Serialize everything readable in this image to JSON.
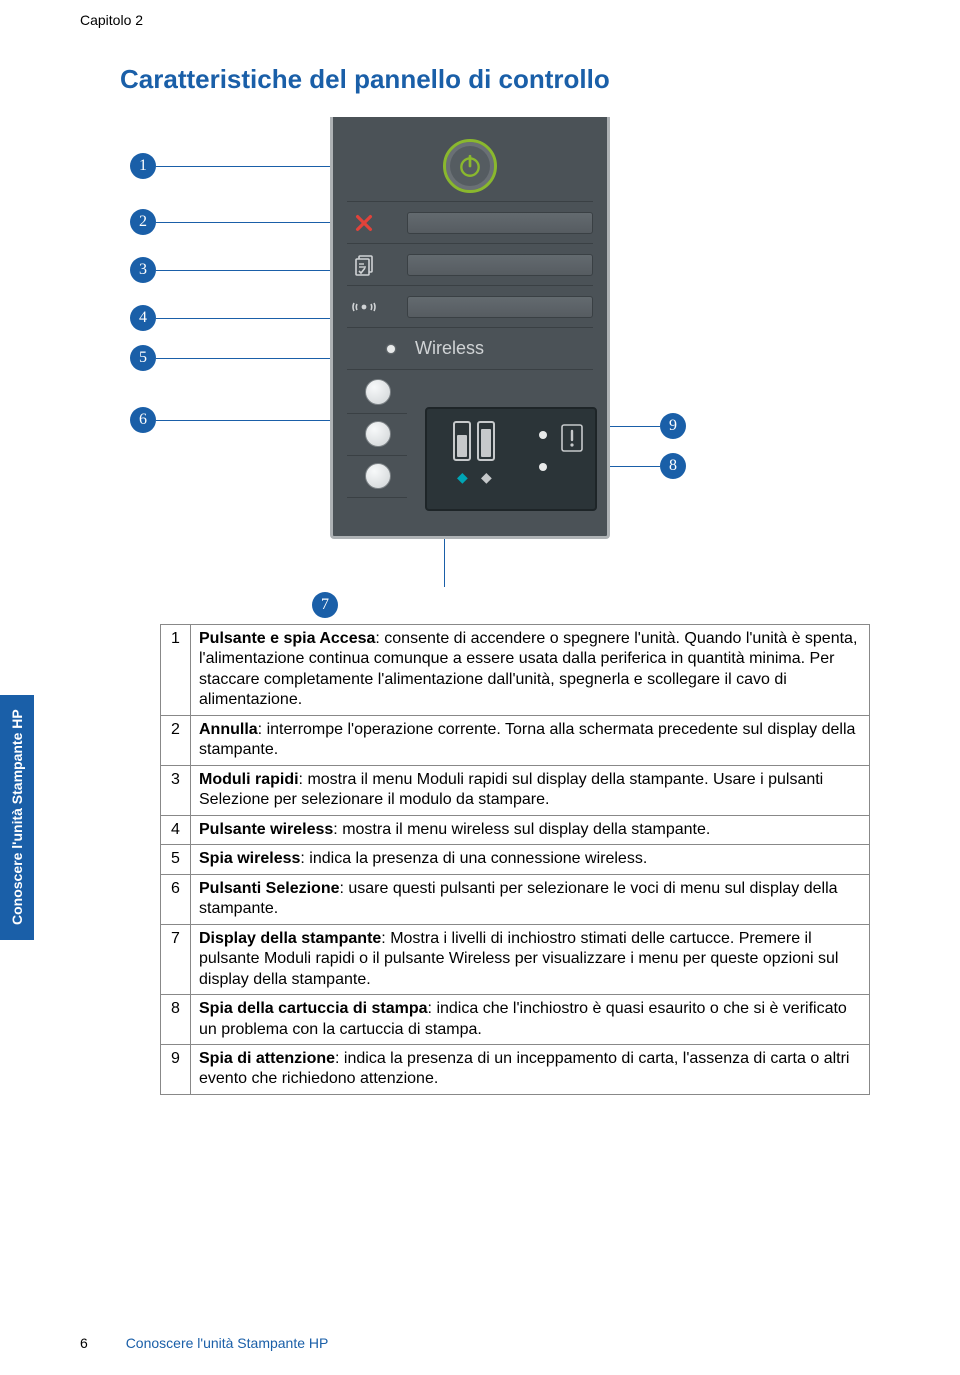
{
  "chapter_label": "Capitolo 2",
  "section_title": "Caratteristiche del pannello di controllo",
  "sidebar_text": "Conoscere l'unità Stampante HP",
  "wireless_label": "Wireless",
  "callouts": {
    "c1": "1",
    "c2": "2",
    "c3": "3",
    "c4": "4",
    "c5": "5",
    "c6": "6",
    "c7": "7",
    "c8": "8",
    "c9": "9"
  },
  "colors": {
    "accent": "#1a5fa8",
    "panel_bg": "#4b5257",
    "led_green": "#8ab82e",
    "cancel_red": "#e2423a"
  },
  "table": {
    "rows": [
      {
        "num": "1",
        "bold": "Pulsante e spia Accesa",
        "rest": ": consente di accendere o spegnere l'unità. Quando l'unità è spenta, l'alimentazione continua comunque a essere usata dalla periferica in quantità minima. Per staccare completamente l'alimentazione dall'unità, spegnerla e scollegare il cavo di alimentazione."
      },
      {
        "num": "2",
        "bold": "Annulla",
        "rest": ": interrompe l'operazione corrente. Torna alla schermata precedente sul display della stampante."
      },
      {
        "num": "3",
        "bold": "Moduli rapidi",
        "rest": ": mostra il menu Moduli rapidi sul display della stampante. Usare i pulsanti Selezione per selezionare il modulo da stampare."
      },
      {
        "num": "4",
        "bold": "Pulsante wireless",
        "rest": ": mostra il menu wireless sul display della stampante."
      },
      {
        "num": "5",
        "bold": "Spia wireless",
        "rest": ": indica la presenza di una connessione wireless."
      },
      {
        "num": "6",
        "bold": "Pulsanti Selezione",
        "rest": ": usare questi pulsanti per selezionare le voci di menu sul display della stampante."
      },
      {
        "num": "7",
        "bold": "Display della stampante",
        "rest": ": Mostra i livelli di inchiostro stimati delle cartucce. Premere il pulsante Moduli rapidi o il pulsante Wireless per visualizzare i menu per queste opzioni sul display della stampante."
      },
      {
        "num": "8",
        "bold": "Spia della cartuccia di stampa",
        "rest": ": indica che l'inchiostro è quasi esaurito o che si è verificato un problema con la cartuccia di stampa."
      },
      {
        "num": "9",
        "bold": "Spia di attenzione",
        "rest": ": indica la presenza di un inceppamento di carta, l'assenza di carta o altri evento che richiedono attenzione."
      }
    ]
  },
  "footer": {
    "page": "6",
    "chapter_title": "Conoscere l'unità Stampante HP"
  }
}
